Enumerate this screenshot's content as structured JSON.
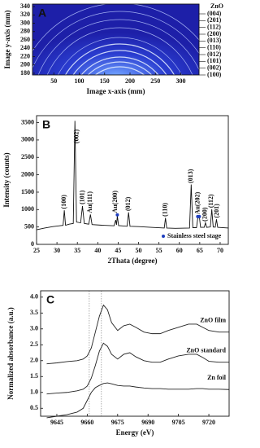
{
  "chart_data": [
    {
      "type": "image",
      "panel_label": "A",
      "xlabel": "Image x-axis (mm)",
      "ylabel": "Image y-axis (mm)",
      "xlim": [
        8,
        336
      ],
      "xticks": [
        50,
        100,
        150,
        200,
        250,
        300
      ],
      "ylim": [
        176,
        346
      ],
      "yticks": [
        180,
        200,
        220,
        240,
        260,
        280,
        300,
        320,
        340
      ],
      "ring_label_title": "ZnO",
      "ring_labels": [
        "(004)",
        "(201)",
        "(112)",
        "(200)",
        "(013)",
        "(110)",
        "(012)",
        "(101)",
        "(002)",
        "(100)"
      ]
    },
    {
      "type": "line",
      "panel_label": "B",
      "xlabel": "2Thata (degree)",
      "ylabel": "Intensity (counts)",
      "xlim": [
        25,
        72
      ],
      "xticks": [
        25,
        30,
        35,
        40,
        45,
        50,
        55,
        60,
        65,
        70
      ],
      "ylim": [
        0,
        3700
      ],
      "yticks": [
        0,
        500,
        1000,
        1500,
        2000,
        2500,
        3000,
        3500
      ],
      "x": [
        25,
        27,
        29,
        31,
        31.5,
        31.8,
        32.1,
        33,
        34.0,
        34.4,
        34.8,
        35.8,
        36.25,
        36.7,
        37.8,
        38.2,
        38.6,
        41,
        44.0,
        44.4,
        44.6,
        44.8,
        45.1,
        47.2,
        47.55,
        47.9,
        50,
        53,
        56.3,
        56.6,
        56.9,
        59,
        62.5,
        62.9,
        63.3,
        64.2,
        64.5,
        64.9,
        65.2,
        66.1,
        66.4,
        66.7,
        67.6,
        67.95,
        68.3,
        68.8,
        69.1,
        69.4,
        72
      ],
      "series": [
        {
          "color": "#111111",
          "values": [
            420,
            470,
            510,
            540,
            545,
            980,
            550,
            580,
            600,
            3550,
            640,
            620,
            1100,
            600,
            580,
            860,
            570,
            550,
            535,
            700,
            560,
            820,
            540,
            520,
            920,
            520,
            510,
            490,
            470,
            760,
            470,
            460,
            470,
            1720,
            480,
            480,
            740,
            800,
            490,
            490,
            620,
            490,
            500,
            1010,
            500,
            495,
            720,
            490,
            470
          ]
        }
      ],
      "markers": {
        "name": "Stainless steel stage",
        "color": "#1f3fbf",
        "x": [
          44.8,
          64.5,
          64.9
        ],
        "values": [
          850,
          800,
          800
        ]
      },
      "legend": "lower right",
      "annotations": [
        {
          "text": "(100)",
          "x": 31.8,
          "y": 1020,
          "color": "#111111"
        },
        {
          "text": "(002)",
          "x": 34.9,
          "y": 2900,
          "color": "#111111"
        },
        {
          "text": "(101)",
          "x": 36.3,
          "y": 1150,
          "color": "#111111"
        },
        {
          "text": "Au(111)",
          "x": 38.2,
          "y": 900,
          "color": "#d01010"
        },
        {
          "text": "Au(200)",
          "x": 44.4,
          "y": 900,
          "color": "#d01010"
        },
        {
          "text": "(012)",
          "x": 47.5,
          "y": 960,
          "color": "#111111"
        },
        {
          "text": "(110)",
          "x": 56.6,
          "y": 800,
          "color": "#111111"
        },
        {
          "text": "(013)",
          "x": 62.9,
          "y": 1760,
          "color": "#111111"
        },
        {
          "text": "Au(202)",
          "x": 64.6,
          "y": 860,
          "color": "#d01010"
        },
        {
          "text": "(200)",
          "x": 66.4,
          "y": 660,
          "color": "#111111"
        },
        {
          "text": "(112)",
          "x": 67.9,
          "y": 1050,
          "color": "#111111"
        },
        {
          "text": "(201)",
          "x": 69.2,
          "y": 760,
          "color": "#111111"
        }
      ]
    },
    {
      "type": "line",
      "panel_label": "C",
      "xlabel": "Energy (eV)",
      "ylabel": "Normalized absorbance (a.u.)",
      "xlim": [
        9637,
        9730
      ],
      "xticks": [
        9645,
        9660,
        9675,
        9690,
        9705,
        9720
      ],
      "ylim": [
        0.25,
        4.2
      ],
      "yticks": [
        0.5,
        {
          "value": 1,
          "label": "1.0"
        },
        1.5,
        {
          "value": 2,
          "label": "2.0"
        },
        2.5,
        {
          "value": 3,
          "label": "3.0"
        },
        3.5,
        {
          "value": 4,
          "label": "4.0"
        }
      ],
      "vlines": [
        9661,
        9667
      ],
      "x": [
        9640,
        9645,
        9650,
        9655,
        9658,
        9660,
        9662,
        9664,
        9666,
        9668,
        9670,
        9672,
        9675,
        9678,
        9681,
        9684,
        9688,
        9692,
        9696,
        9700,
        9705,
        9710,
        9714,
        9717,
        9720,
        9725,
        9730
      ],
      "series": [
        {
          "name": "ZnO film",
          "color": "#222222",
          "values": [
            1.9,
            1.93,
            1.97,
            2.0,
            2.05,
            2.15,
            2.4,
            2.9,
            3.4,
            3.75,
            3.6,
            3.2,
            2.95,
            3.1,
            3.15,
            3.05,
            2.9,
            2.85,
            2.85,
            2.95,
            3.05,
            3.15,
            3.15,
            3.05,
            2.95,
            2.9,
            2.9
          ]
        },
        {
          "name": "ZnO standard",
          "color": "#222222",
          "values": [
            0.95,
            0.98,
            1.0,
            1.05,
            1.1,
            1.2,
            1.45,
            1.85,
            2.3,
            2.55,
            2.45,
            2.2,
            2.05,
            2.2,
            2.25,
            2.12,
            2.0,
            1.95,
            1.95,
            2.05,
            2.15,
            2.2,
            2.2,
            2.1,
            1.98,
            1.95,
            1.95
          ]
        },
        {
          "name": "Zn foil",
          "color": "#222222",
          "values": [
            0.2,
            0.25,
            0.3,
            0.38,
            0.5,
            0.75,
            1.0,
            1.15,
            1.22,
            1.28,
            1.3,
            1.27,
            1.22,
            1.2,
            1.2,
            1.17,
            1.14,
            1.12,
            1.12,
            1.1,
            1.1,
            1.1,
            1.12,
            1.12,
            1.1,
            1.1,
            1.09
          ]
        }
      ]
    }
  ]
}
